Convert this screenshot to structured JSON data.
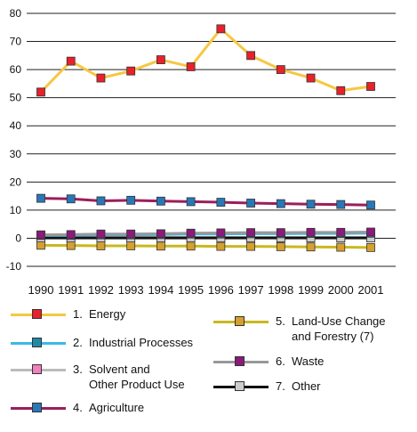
{
  "chart_data": {
    "type": "line",
    "title": "",
    "xlabel": "",
    "ylabel": "",
    "x": [
      "1990",
      "1991",
      "1992",
      "1993",
      "1994",
      "1995",
      "1996",
      "1997",
      "1998",
      "1999",
      "2000",
      "2001"
    ],
    "ylim": [
      -10,
      80
    ],
    "yticks": [
      "-10",
      "0",
      "10",
      "20",
      "30",
      "40",
      "50",
      "60",
      "70",
      "80"
    ],
    "grid": "horizontal",
    "legend_position": "bottom",
    "series": [
      {
        "num": "1.",
        "name": "Energy",
        "color": "#f5c842",
        "marker_color": "#e8212a",
        "values": [
          52,
          63,
          57,
          59.5,
          63.5,
          61,
          74.5,
          65,
          60,
          57,
          52.5,
          54
        ]
      },
      {
        "num": "2.",
        "name": "Industrial Processes",
        "color": "#3db8e8",
        "marker_color": "#1e8aa8",
        "values": [
          1,
          1,
          1.2,
          1.2,
          1.3,
          1.5,
          1.5,
          1.6,
          1.6,
          1.7,
          1.7,
          1.8
        ]
      },
      {
        "num": "3.",
        "name": "Solvent and",
        "name2": "Other Product Use",
        "color": "#bbbbbb",
        "marker_color": "#f27fbf",
        "values": [
          0.3,
          0.3,
          0.3,
          0.3,
          0.3,
          0.3,
          0.3,
          0.3,
          0.3,
          0.3,
          0.3,
          0.3
        ]
      },
      {
        "num": "4.",
        "name": "Agriculture",
        "color": "#9c1e5c",
        "marker_color": "#2878b8",
        "values": [
          14.2,
          14,
          13.3,
          13.5,
          13.2,
          13,
          12.8,
          12.5,
          12.3,
          12.1,
          12,
          11.8
        ]
      },
      {
        "num": "5.",
        "name": "Land-Use Change",
        "name2": "and Forestry (7)",
        "color": "#c9b81f",
        "marker_color": "#d4a030",
        "values": [
          -2.5,
          -2.6,
          -2.7,
          -2.7,
          -2.8,
          -2.8,
          -2.9,
          -2.9,
          -3,
          -3.1,
          -3.2,
          -3.3
        ]
      },
      {
        "num": "6.",
        "name": "Waste",
        "color": "#999999",
        "marker_color": "#8b1a7a",
        "values": [
          1.2,
          1.3,
          1.5,
          1.5,
          1.6,
          1.8,
          1.9,
          2,
          2,
          2.1,
          2.1,
          2.2
        ]
      },
      {
        "num": "7.",
        "name": "Other",
        "color": "#111111",
        "marker_color": "#cccccc",
        "values": [
          0.1,
          0.1,
          0.1,
          0.1,
          0.1,
          0.1,
          0.1,
          0.1,
          0.1,
          0.1,
          0.1,
          0.1
        ]
      }
    ]
  }
}
